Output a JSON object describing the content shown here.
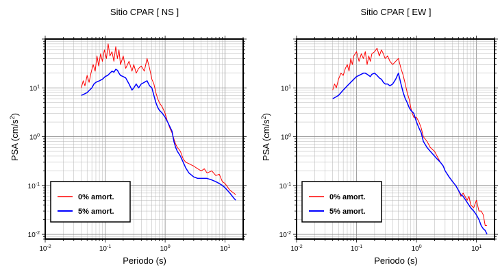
{
  "chart_data": [
    {
      "type": "line",
      "title": "Sitio CPAR [ NS ]",
      "xlabel": "Periodo (s)",
      "ylabel": "PSA (cm/s2)",
      "x_scale": "log",
      "y_scale": "log",
      "xlim": [
        0.01,
        20
      ],
      "ylim": [
        0.008,
        100
      ],
      "grid": true,
      "legend_position": "bottom-left",
      "x_ticks": [
        {
          "value": 0.01,
          "base": "10",
          "exp": "-2"
        },
        {
          "value": 0.1,
          "base": "10",
          "exp": "-1"
        },
        {
          "value": 1,
          "base": "10",
          "exp": "0"
        },
        {
          "value": 10,
          "base": "10",
          "exp": "1"
        }
      ],
      "y_ticks": [
        {
          "value": 0.01,
          "base": "10",
          "exp": "-2"
        },
        {
          "value": 0.1,
          "base": "10",
          "exp": "-1"
        },
        {
          "value": 1,
          "base": "10",
          "exp": "0"
        },
        {
          "value": 10,
          "base": "10",
          "exp": "1"
        }
      ],
      "series": [
        {
          "name": "0% amort.",
          "color": "#ff0000",
          "points": [
            [
              0.04,
              10
            ],
            [
              0.043,
              14
            ],
            [
              0.046,
              11
            ],
            [
              0.05,
              18
            ],
            [
              0.054,
              13
            ],
            [
              0.058,
              20
            ],
            [
              0.063,
              30
            ],
            [
              0.068,
              22
            ],
            [
              0.073,
              45
            ],
            [
              0.078,
              28
            ],
            [
              0.084,
              50
            ],
            [
              0.09,
              35
            ],
            [
              0.097,
              60
            ],
            [
              0.105,
              40
            ],
            [
              0.112,
              80
            ],
            [
              0.12,
              45
            ],
            [
              0.13,
              55
            ],
            [
              0.14,
              35
            ],
            [
              0.15,
              70
            ],
            [
              0.16,
              40
            ],
            [
              0.17,
              60
            ],
            [
              0.18,
              30
            ],
            [
              0.2,
              45
            ],
            [
              0.22,
              25
            ],
            [
              0.25,
              35
            ],
            [
              0.28,
              22
            ],
            [
              0.3,
              30
            ],
            [
              0.33,
              20
            ],
            [
              0.36,
              25
            ],
            [
              0.4,
              28
            ],
            [
              0.45,
              22
            ],
            [
              0.5,
              40
            ],
            [
              0.55,
              25
            ],
            [
              0.6,
              15
            ],
            [
              0.65,
              12
            ],
            [
              0.7,
              8
            ],
            [
              0.75,
              6
            ],
            [
              0.8,
              5
            ],
            [
              0.9,
              4
            ],
            [
              1.0,
              3
            ],
            [
              1.1,
              2
            ],
            [
              1.2,
              1.5
            ],
            [
              1.3,
              1.2
            ],
            [
              1.4,
              0.9
            ],
            [
              1.5,
              0.7
            ],
            [
              1.6,
              0.6
            ],
            [
              1.7,
              0.55
            ],
            [
              1.8,
              0.5
            ],
            [
              2.0,
              0.35
            ],
            [
              2.2,
              0.3
            ],
            [
              2.5,
              0.28
            ],
            [
              2.8,
              0.26
            ],
            [
              3.0,
              0.25
            ],
            [
              3.5,
              0.22
            ],
            [
              4.0,
              0.2
            ],
            [
              4.5,
              0.22
            ],
            [
              5.0,
              0.18
            ],
            [
              6.0,
              0.2
            ],
            [
              7.0,
              0.16
            ],
            [
              8.0,
              0.17
            ],
            [
              9.0,
              0.12
            ],
            [
              10,
              0.11
            ],
            [
              12,
              0.08
            ],
            [
              14,
              0.07
            ],
            [
              15,
              0.065
            ]
          ]
        },
        {
          "name": "5% amort.",
          "color": "#0000ff",
          "points": [
            [
              0.04,
              7
            ],
            [
              0.045,
              7.5
            ],
            [
              0.05,
              8
            ],
            [
              0.055,
              9
            ],
            [
              0.06,
              10
            ],
            [
              0.065,
              12
            ],
            [
              0.07,
              13
            ],
            [
              0.08,
              14
            ],
            [
              0.09,
              15
            ],
            [
              0.1,
              17
            ],
            [
              0.11,
              18
            ],
            [
              0.12,
              20
            ],
            [
              0.13,
              22
            ],
            [
              0.14,
              21
            ],
            [
              0.15,
              24
            ],
            [
              0.16,
              23
            ],
            [
              0.17,
              20
            ],
            [
              0.18,
              18
            ],
            [
              0.2,
              17
            ],
            [
              0.22,
              16
            ],
            [
              0.25,
              12
            ],
            [
              0.28,
              9
            ],
            [
              0.3,
              10
            ],
            [
              0.33,
              12
            ],
            [
              0.36,
              10
            ],
            [
              0.4,
              12
            ],
            [
              0.45,
              13
            ],
            [
              0.5,
              14
            ],
            [
              0.55,
              11
            ],
            [
              0.6,
              10
            ],
            [
              0.65,
              7
            ],
            [
              0.7,
              5
            ],
            [
              0.75,
              4
            ],
            [
              0.8,
              3.5
            ],
            [
              0.9,
              3
            ],
            [
              1.0,
              2.5
            ],
            [
              1.1,
              2
            ],
            [
              1.2,
              1.6
            ],
            [
              1.3,
              1.3
            ],
            [
              1.4,
              0.8
            ],
            [
              1.5,
              0.6
            ],
            [
              1.6,
              0.5
            ],
            [
              1.8,
              0.4
            ],
            [
              2.0,
              0.3
            ],
            [
              2.2,
              0.23
            ],
            [
              2.5,
              0.18
            ],
            [
              3.0,
              0.15
            ],
            [
              3.5,
              0.14
            ],
            [
              4.0,
              0.14
            ],
            [
              5.0,
              0.14
            ],
            [
              6.0,
              0.13
            ],
            [
              7.0,
              0.12
            ],
            [
              8.0,
              0.11
            ],
            [
              9.0,
              0.1
            ],
            [
              10,
              0.09
            ],
            [
              12,
              0.07
            ],
            [
              14,
              0.055
            ],
            [
              15,
              0.05
            ]
          ]
        }
      ]
    },
    {
      "type": "line",
      "title": "Sitio CPAR [ EW ]",
      "xlabel": "Periodo (s)",
      "ylabel": "PSA (cm/s2)",
      "x_scale": "log",
      "y_scale": "log",
      "xlim": [
        0.01,
        20
      ],
      "ylim": [
        0.008,
        100
      ],
      "grid": true,
      "legend_position": "bottom-left",
      "x_ticks": [
        {
          "value": 0.01,
          "base": "10",
          "exp": "-2"
        },
        {
          "value": 0.1,
          "base": "10",
          "exp": "-1"
        },
        {
          "value": 1,
          "base": "10",
          "exp": "0"
        },
        {
          "value": 10,
          "base": "10",
          "exp": "1"
        }
      ],
      "y_ticks": [
        {
          "value": 0.01,
          "base": "10",
          "exp": "-2"
        },
        {
          "value": 0.1,
          "base": "10",
          "exp": "-1"
        },
        {
          "value": 1,
          "base": "10",
          "exp": "0"
        },
        {
          "value": 10,
          "base": "10",
          "exp": "1"
        }
      ],
      "series": [
        {
          "name": "0% amort.",
          "color": "#ff0000",
          "points": [
            [
              0.04,
              9
            ],
            [
              0.043,
              12
            ],
            [
              0.046,
              10
            ],
            [
              0.05,
              15
            ],
            [
              0.055,
              20
            ],
            [
              0.06,
              18
            ],
            [
              0.065,
              25
            ],
            [
              0.07,
              30
            ],
            [
              0.075,
              22
            ],
            [
              0.08,
              40
            ],
            [
              0.085,
              30
            ],
            [
              0.09,
              45
            ],
            [
              0.1,
              55
            ],
            [
              0.11,
              35
            ],
            [
              0.12,
              50
            ],
            [
              0.13,
              40
            ],
            [
              0.14,
              55
            ],
            [
              0.15,
              30
            ],
            [
              0.16,
              45
            ],
            [
              0.17,
              35
            ],
            [
              0.18,
              50
            ],
            [
              0.2,
              55
            ],
            [
              0.22,
              65
            ],
            [
              0.24,
              45
            ],
            [
              0.26,
              60
            ],
            [
              0.28,
              50
            ],
            [
              0.3,
              40
            ],
            [
              0.33,
              45
            ],
            [
              0.36,
              35
            ],
            [
              0.4,
              30
            ],
            [
              0.45,
              35
            ],
            [
              0.5,
              40
            ],
            [
              0.55,
              25
            ],
            [
              0.6,
              18
            ],
            [
              0.65,
              12
            ],
            [
              0.7,
              8
            ],
            [
              0.75,
              6
            ],
            [
              0.8,
              4
            ],
            [
              0.85,
              3
            ],
            [
              0.9,
              2.5
            ],
            [
              1.0,
              2.5
            ],
            [
              1.1,
              2
            ],
            [
              1.2,
              1.5
            ],
            [
              1.3,
              1
            ],
            [
              1.5,
              0.8
            ],
            [
              1.7,
              0.6
            ],
            [
              2.0,
              0.5
            ],
            [
              2.2,
              0.4
            ],
            [
              2.5,
              0.3
            ],
            [
              2.8,
              0.25
            ],
            [
              3.0,
              0.2
            ],
            [
              3.5,
              0.15
            ],
            [
              4.0,
              0.12
            ],
            [
              4.5,
              0.1
            ],
            [
              5.0,
              0.08
            ],
            [
              5.5,
              0.06
            ],
            [
              6.0,
              0.07
            ],
            [
              7.0,
              0.05
            ],
            [
              7.5,
              0.06
            ],
            [
              8.0,
              0.04
            ],
            [
              9.0,
              0.035
            ],
            [
              10,
              0.05
            ],
            [
              11,
              0.03
            ],
            [
              12,
              0.03
            ],
            [
              13,
              0.025
            ],
            [
              14,
              0.015
            ],
            [
              15,
              0.015
            ]
          ]
        },
        {
          "name": "5% amort.",
          "color": "#0000ff",
          "points": [
            [
              0.04,
              6
            ],
            [
              0.045,
              6.5
            ],
            [
              0.05,
              7
            ],
            [
              0.055,
              8
            ],
            [
              0.06,
              9
            ],
            [
              0.065,
              10
            ],
            [
              0.07,
              11
            ],
            [
              0.08,
              13
            ],
            [
              0.09,
              15
            ],
            [
              0.1,
              17
            ],
            [
              0.11,
              18
            ],
            [
              0.12,
              19
            ],
            [
              0.13,
              20
            ],
            [
              0.14,
              20
            ],
            [
              0.15,
              19
            ],
            [
              0.16,
              18
            ],
            [
              0.17,
              17
            ],
            [
              0.18,
              19
            ],
            [
              0.2,
              20
            ],
            [
              0.22,
              18
            ],
            [
              0.24,
              16
            ],
            [
              0.26,
              15
            ],
            [
              0.28,
              13
            ],
            [
              0.3,
              12
            ],
            [
              0.33,
              12
            ],
            [
              0.36,
              11
            ],
            [
              0.4,
              12
            ],
            [
              0.45,
              15
            ],
            [
              0.5,
              20
            ],
            [
              0.55,
              12
            ],
            [
              0.6,
              8
            ],
            [
              0.65,
              6
            ],
            [
              0.7,
              5
            ],
            [
              0.75,
              4
            ],
            [
              0.8,
              3.5
            ],
            [
              0.9,
              3
            ],
            [
              1.0,
              2
            ],
            [
              1.1,
              1.5
            ],
            [
              1.2,
              1.2
            ],
            [
              1.3,
              0.8
            ],
            [
              1.5,
              0.6
            ],
            [
              1.7,
              0.5
            ],
            [
              2.0,
              0.4
            ],
            [
              2.2,
              0.35
            ],
            [
              2.5,
              0.3
            ],
            [
              2.8,
              0.25
            ],
            [
              3.0,
              0.2
            ],
            [
              3.5,
              0.15
            ],
            [
              4.0,
              0.12
            ],
            [
              4.5,
              0.1
            ],
            [
              5.0,
              0.08
            ],
            [
              5.5,
              0.065
            ],
            [
              6.0,
              0.06
            ],
            [
              7.0,
              0.045
            ],
            [
              8.0,
              0.035
            ],
            [
              9.0,
              0.03
            ],
            [
              10,
              0.025
            ],
            [
              11,
              0.02
            ],
            [
              12,
              0.015
            ],
            [
              13,
              0.013
            ],
            [
              14,
              0.012
            ],
            [
              15,
              0.01
            ]
          ]
        }
      ]
    }
  ]
}
